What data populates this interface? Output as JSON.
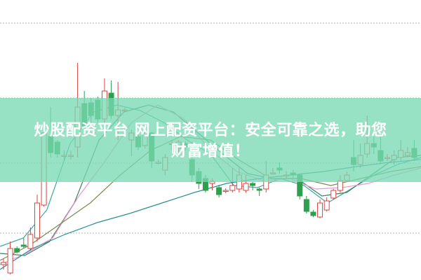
{
  "banner": {
    "line1": "炒股配资平台 网上配资平台：安全可靠之选，助您",
    "line2": "财富增值！",
    "color": "#7ad8b4"
  },
  "chart_data": {
    "type": "candlestick",
    "title": "",
    "xlabel": "",
    "ylabel": "",
    "ylim": [
      0,
      400
    ],
    "grid": true,
    "colors": {
      "up": "#d9453f",
      "down": "#2e9e4f"
    },
    "candles": [
      {
        "o": 22,
        "c": 25,
        "h": 30,
        "l": 15
      },
      {
        "o": 10,
        "c": 45,
        "h": 55,
        "l": 8
      },
      {
        "o": 45,
        "c": 40,
        "h": 48,
        "l": 38
      },
      {
        "o": 50,
        "c": 48,
        "h": 60,
        "l": 45
      },
      {
        "o": 45,
        "c": 65,
        "h": 75,
        "l": 42
      },
      {
        "o": 60,
        "c": 110,
        "h": 122,
        "l": 55
      },
      {
        "o": 107,
        "c": 210,
        "h": 212,
        "l": 105
      },
      {
        "o": 205,
        "c": 182,
        "h": 247,
        "l": 175
      },
      {
        "o": 197,
        "c": 180,
        "h": 200,
        "l": 175
      },
      {
        "o": 178,
        "c": 178,
        "h": 185,
        "l": 170
      },
      {
        "o": 178,
        "c": 178,
        "h": 185,
        "l": 172
      },
      {
        "o": 190,
        "c": 247,
        "h": 310,
        "l": 175
      },
      {
        "o": 252,
        "c": 220,
        "h": 270,
        "l": 215
      },
      {
        "o": 253,
        "c": 235,
        "h": 260,
        "l": 225
      },
      {
        "o": 257,
        "c": 230,
        "h": 262,
        "l": 225
      },
      {
        "o": 230,
        "c": 270,
        "h": 288,
        "l": 225
      },
      {
        "o": 267,
        "c": 235,
        "h": 285,
        "l": 230
      },
      {
        "o": 235,
        "c": 243,
        "h": 283,
        "l": 200
      },
      {
        "o": 243,
        "c": 243,
        "h": 246,
        "l": 240
      },
      {
        "o": 200,
        "c": 210,
        "h": 215,
        "l": 177
      },
      {
        "o": 205,
        "c": 190,
        "h": 210,
        "l": 185
      },
      {
        "o": 192,
        "c": 210,
        "h": 215,
        "l": 188
      },
      {
        "o": 210,
        "c": 170,
        "h": 212,
        "l": 160
      },
      {
        "o": 168,
        "c": 168,
        "h": 172,
        "l": 165
      },
      {
        "o": 157,
        "c": 175,
        "h": 180,
        "l": 150
      },
      {
        "o": 195,
        "c": 195,
        "h": 200,
        "l": 185
      },
      {
        "o": 188,
        "c": 197,
        "h": 200,
        "l": 180
      },
      {
        "o": 195,
        "c": 190,
        "h": 198,
        "l": 185
      },
      {
        "o": 172,
        "c": 150,
        "h": 175,
        "l": 140
      },
      {
        "o": 155,
        "c": 138,
        "h": 160,
        "l": 130
      },
      {
        "o": 145,
        "c": 128,
        "h": 150,
        "l": 125
      },
      {
        "o": 138,
        "c": 141,
        "h": 145,
        "l": 128
      },
      {
        "o": 132,
        "c": 122,
        "h": 136,
        "l": 118
      },
      {
        "o": 128,
        "c": 128,
        "h": 131,
        "l": 124
      },
      {
        "o": 128,
        "c": 135,
        "h": 160,
        "l": 125
      },
      {
        "o": 130,
        "c": 150,
        "h": 160,
        "l": 125
      },
      {
        "o": 128,
        "c": 138,
        "h": 150,
        "l": 125
      },
      {
        "o": 138,
        "c": 135,
        "h": 140,
        "l": 128
      },
      {
        "o": 130,
        "c": 128,
        "h": 132,
        "l": 120
      },
      {
        "o": 130,
        "c": 150,
        "h": 170,
        "l": 125
      },
      {
        "o": 153,
        "c": 153,
        "h": 160,
        "l": 150
      },
      {
        "o": 160,
        "c": 157,
        "h": 168,
        "l": 152
      },
      {
        "o": 150,
        "c": 150,
        "h": 155,
        "l": 145
      },
      {
        "o": 153,
        "c": 150,
        "h": 157,
        "l": 145
      },
      {
        "o": 150,
        "c": 120,
        "h": 152,
        "l": 115
      },
      {
        "o": 115,
        "c": 98,
        "h": 120,
        "l": 95
      },
      {
        "o": 97,
        "c": 92,
        "h": 100,
        "l": 90
      },
      {
        "o": 90,
        "c": 110,
        "h": 115,
        "l": 88
      },
      {
        "o": 100,
        "c": 113,
        "h": 118,
        "l": 98
      },
      {
        "o": 117,
        "c": 128,
        "h": 130,
        "l": 115
      },
      {
        "o": 128,
        "c": 142,
        "h": 150,
        "l": 125
      },
      {
        "o": 142,
        "c": 150,
        "h": 155,
        "l": 140
      },
      {
        "o": 175,
        "c": 165,
        "h": 200,
        "l": 155
      },
      {
        "o": 165,
        "c": 178,
        "h": 195,
        "l": 160
      },
      {
        "o": 180,
        "c": 195,
        "h": 235,
        "l": 175
      },
      {
        "o": 195,
        "c": 190,
        "h": 205,
        "l": 180
      },
      {
        "o": 185,
        "c": 170,
        "h": 205,
        "l": 165
      },
      {
        "o": 175,
        "c": 175,
        "h": 180,
        "l": 170
      },
      {
        "o": 172,
        "c": 178,
        "h": 185,
        "l": 165
      },
      {
        "o": 175,
        "c": 185,
        "h": 200,
        "l": 170
      },
      {
        "o": 178,
        "c": 182,
        "h": 190,
        "l": 175
      },
      {
        "o": 188,
        "c": 175,
        "h": 200,
        "l": 170
      }
    ],
    "moving_averages": [
      {
        "color": "#3aa9a0",
        "values": [
          48,
          60,
          100,
          195,
          240,
          250,
          242,
          225,
          200,
          180,
          135,
          132,
          145,
          135,
          110,
          130,
          150,
          165,
          175
        ]
      },
      {
        "color": "#3f7f5a",
        "values": [
          38,
          35,
          55,
          110,
          200,
          240,
          250,
          240,
          210,
          180,
          152,
          145,
          145,
          120,
          125,
          150,
          175,
          178
        ]
      },
      {
        "color": "#e79ad0",
        "values": [
          22,
          38,
          60,
          120,
          170,
          225,
          250,
          230,
          185,
          155,
          142,
          145,
          130,
          132,
          138,
          150,
          160
        ]
      },
      {
        "color": "#7a8a50",
        "values": [
          28,
          50,
          80,
          110,
          150,
          185,
          205,
          200,
          170,
          145,
          145,
          135,
          145,
          155,
          162
        ]
      },
      {
        "color": "#2b8f9a",
        "values": [
          15,
          45,
          65,
          82,
          95,
          110,
          125,
          138,
          145,
          150,
          155,
          162,
          168,
          172
        ]
      }
    ]
  }
}
